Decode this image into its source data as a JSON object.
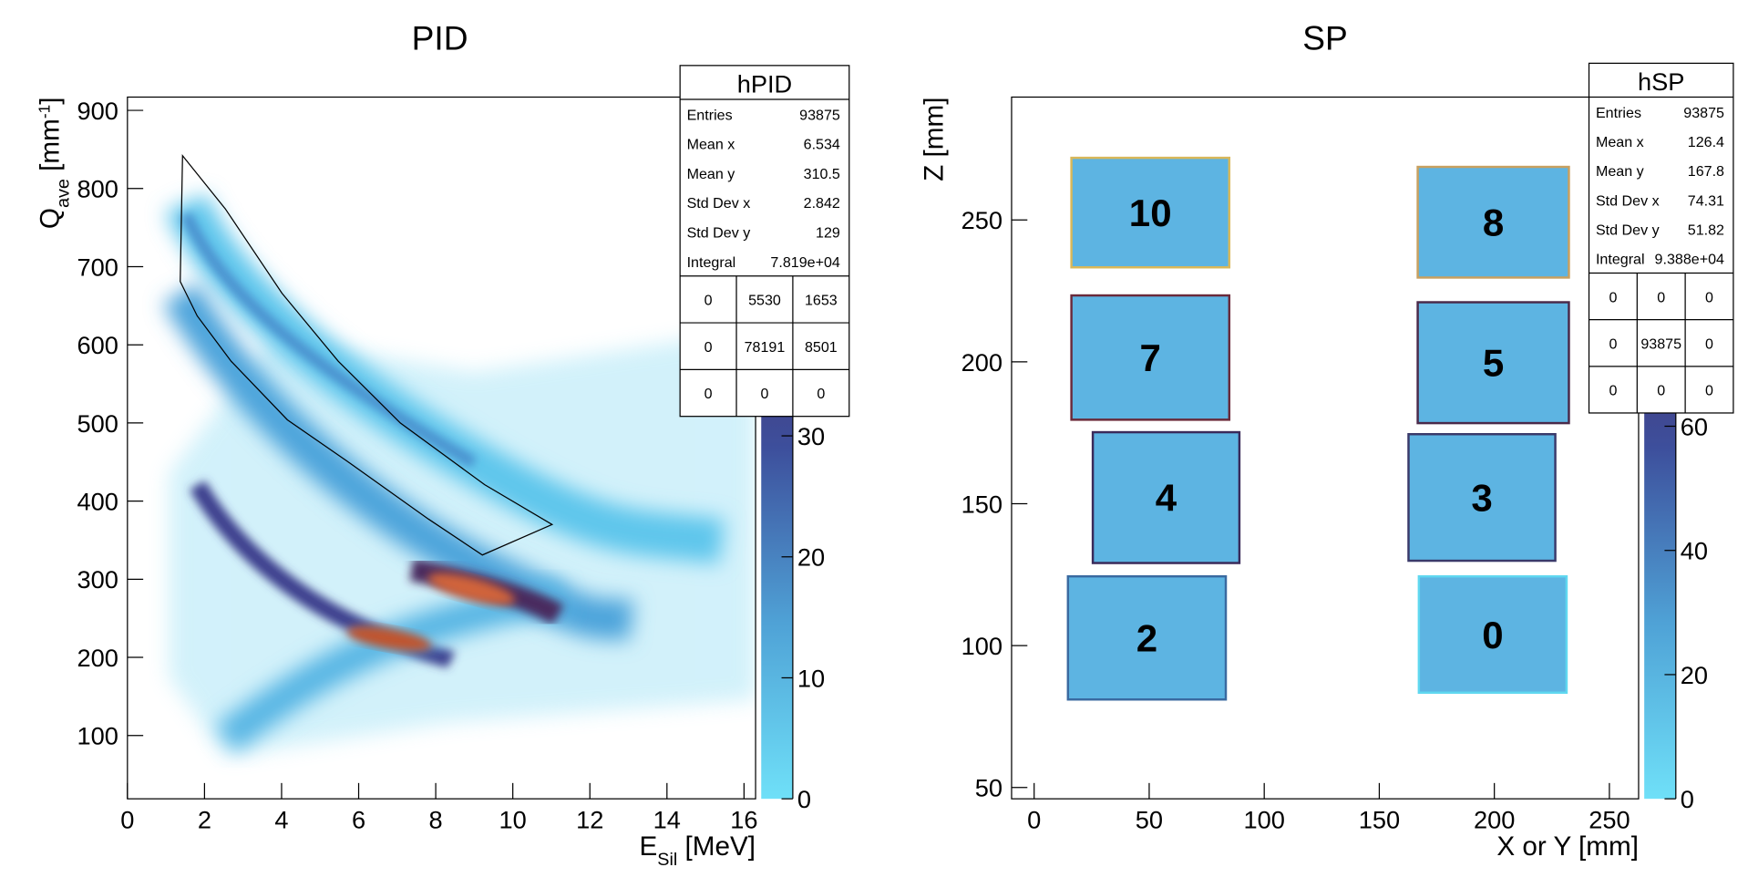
{
  "chart_data": [
    {
      "type": "histogram2d",
      "title": "PID",
      "xlabel": {
        "text": "E",
        "sub": "Sil",
        "unit": " [MeV]"
      },
      "ylabel": {
        "text": "Q",
        "sub": "ave",
        "unit": " [mm",
        "sup": "-1",
        "close": "]"
      },
      "xlim": [
        0,
        16.3
      ],
      "ylim": [
        19,
        917
      ],
      "xticks": [
        0,
        2,
        4,
        6,
        8,
        10,
        12,
        14,
        16
      ],
      "yticks": [
        100,
        200,
        300,
        400,
        500,
        600,
        700,
        800,
        900
      ],
      "zlim": [
        0,
        58
      ],
      "zticks": [
        0,
        10,
        20,
        30
      ],
      "cut": {
        "x": [
          1.43,
          2.54,
          4.01,
          5.47,
          7.08,
          9.27,
          11.02,
          9.21,
          7.81,
          5.76,
          4.15,
          2.69,
          1.81,
          1.37
        ],
        "y": [
          842,
          774,
          666,
          579,
          500,
          421,
          370,
          331,
          377,
          449,
          504,
          579,
          637,
          681
        ]
      },
      "stats": {
        "title": "hPID",
        "rows": [
          [
            "Entries",
            "93875"
          ],
          [
            "Mean x",
            "6.534"
          ],
          [
            "Mean y",
            "310.5"
          ],
          [
            "Std Dev x",
            "2.842"
          ],
          [
            "Std Dev y",
            "129"
          ],
          [
            "Integral",
            "7.819e+04"
          ]
        ],
        "grid": [
          [
            "0",
            "5530",
            "1653"
          ],
          [
            "0",
            "78191",
            "8501"
          ],
          [
            "0",
            "0",
            "0"
          ]
        ]
      }
    },
    {
      "type": "histogram2d",
      "title": "SP",
      "xlabel": {
        "text": "X or Y [mm]"
      },
      "ylabel": {
        "text": "Z [mm]"
      },
      "xlim": [
        -9.8,
        262.7
      ],
      "ylim": [
        46,
        293.3
      ],
      "xticks": [
        0,
        50,
        100,
        150,
        200,
        250
      ],
      "yticks": [
        50,
        100,
        150,
        200,
        250
      ],
      "zlim": [
        0,
        113
      ],
      "zticks": [
        0,
        20,
        40,
        60
      ],
      "regions": [
        {
          "label": "10",
          "x": [
            16.2,
            84.8
          ],
          "y": [
            233.3,
            271.9
          ],
          "color": "#d8b85a"
        },
        {
          "label": "8",
          "x": [
            166.7,
            232.4
          ],
          "y": [
            229.7,
            268.7
          ],
          "color": "#c8a060"
        },
        {
          "label": "7",
          "x": [
            16.2,
            84.8
          ],
          "y": [
            179.6,
            223.4
          ],
          "color": "#6a2a3a"
        },
        {
          "label": "5",
          "x": [
            166.7,
            232.4
          ],
          "y": [
            178.4,
            221.0
          ],
          "color": "#4a2a4a"
        },
        {
          "label": "4",
          "x": [
            25.5,
            89.2
          ],
          "y": [
            129.1,
            175.2
          ],
          "color": "#3a2a5a"
        },
        {
          "label": "3",
          "x": [
            162.7,
            226.5
          ],
          "y": [
            129.9,
            174.5
          ],
          "color": "#3a3a6a"
        },
        {
          "label": "2",
          "x": [
            14.7,
            83.3
          ],
          "y": [
            81.0,
            124.4
          ],
          "color": "#3a6aa0"
        },
        {
          "label": "0",
          "x": [
            167.2,
            231.4
          ],
          "y": [
            83.4,
            124.4
          ],
          "color": "#60d8f0"
        }
      ],
      "stats": {
        "title": "hSP",
        "rows": [
          [
            "Entries",
            "93875"
          ],
          [
            "Mean x",
            "126.4"
          ],
          [
            "Mean y",
            "167.8"
          ],
          [
            "Std Dev x",
            "74.31"
          ],
          [
            "Std Dev y",
            "51.82"
          ],
          [
            "Integral",
            "9.388e+04"
          ]
        ],
        "grid": [
          [
            "0",
            "0",
            "0"
          ],
          [
            "0",
            "93875",
            "0"
          ],
          [
            "0",
            "0",
            "0"
          ]
        ]
      }
    }
  ]
}
